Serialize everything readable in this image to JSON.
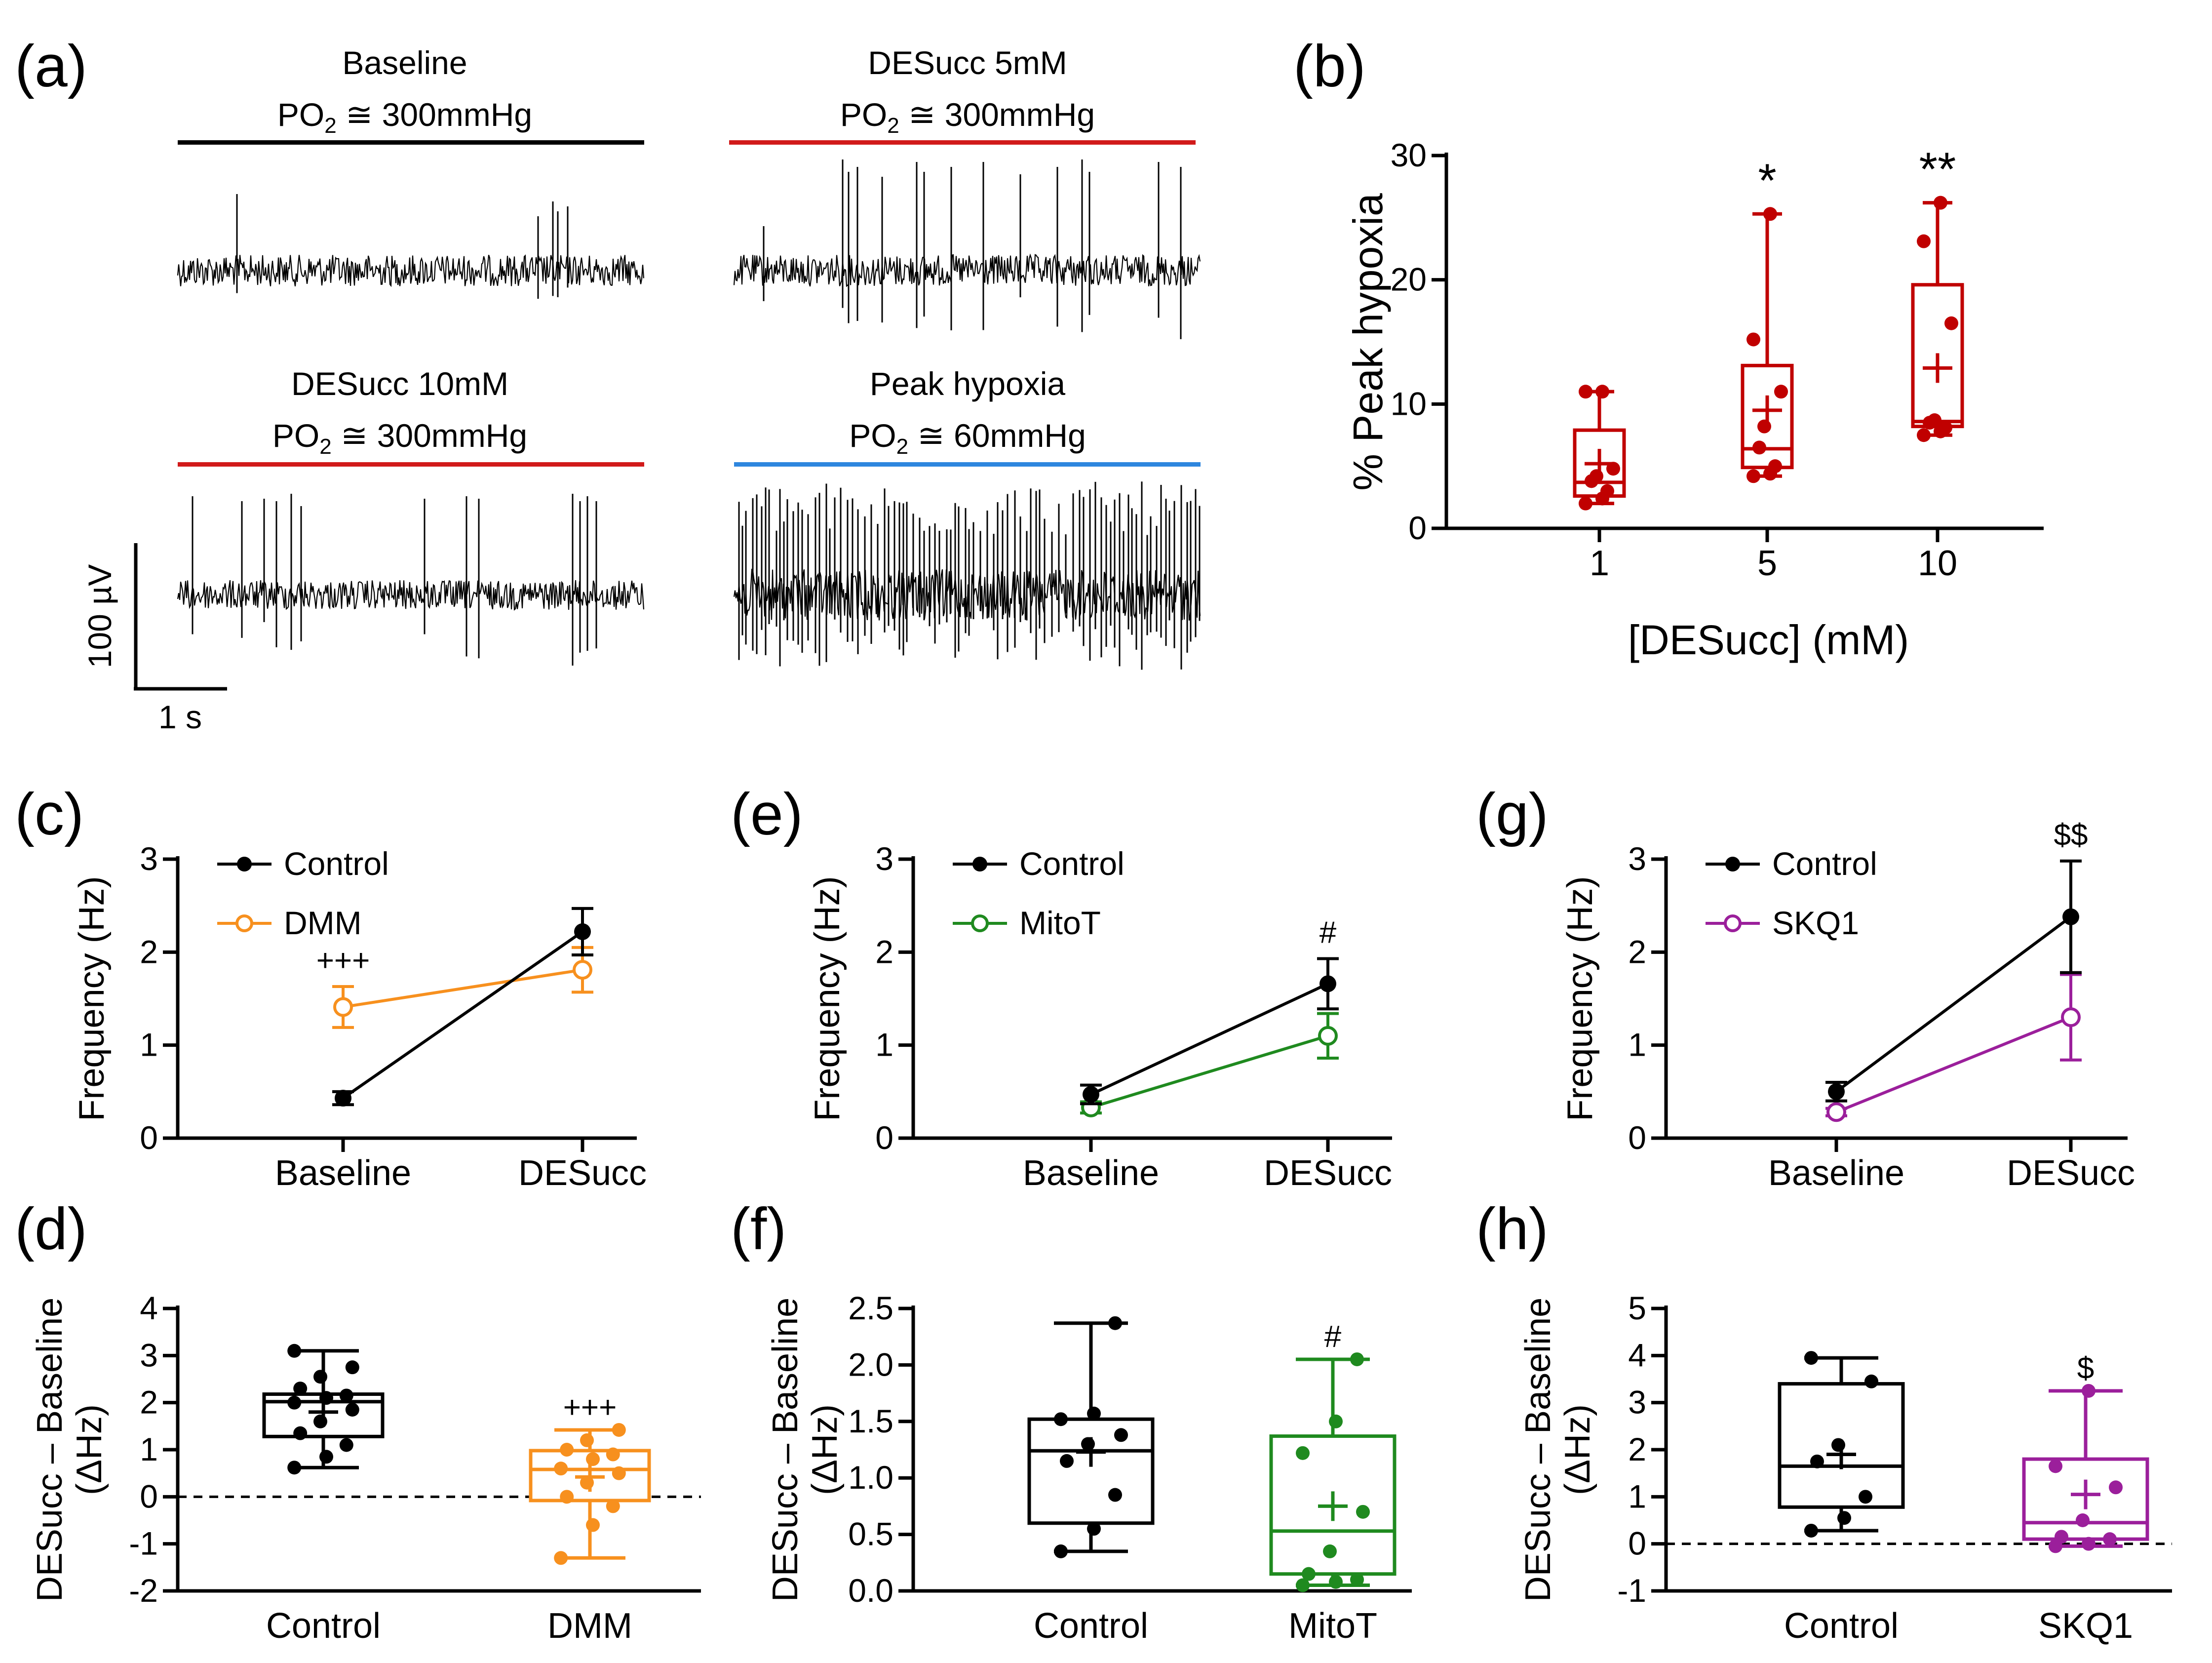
{
  "panel_labels": [
    "(a)",
    "(b)",
    "(c)",
    "(d)",
    "(e)",
    "(f)",
    "(g)",
    "(h)"
  ],
  "colors": {
    "black": "#000000",
    "desucc_red": "#d11a1a",
    "box_red": "#c00000",
    "hypoxia_blue": "#2e86de",
    "dmm_orange": "#f7901e",
    "mitot_green": "#1f8a1f",
    "skq1_purple": "#9b1f9b"
  },
  "panel_a": {
    "traces": [
      {
        "title": "Baseline",
        "subtitle_pre": "PO",
        "subtitle_sub": "2",
        "subtitle_post": " ≅ 300mmHg",
        "bar_color": "#000000",
        "activity": "low"
      },
      {
        "title": "DESucc 5mM",
        "subtitle_pre": "PO",
        "subtitle_sub": "2",
        "subtitle_post": " ≅ 300mmHg",
        "bar_color": "#d11a1a",
        "activity": "moderate"
      },
      {
        "title": "DESucc 10mM",
        "subtitle_pre": "PO",
        "subtitle_sub": "2",
        "subtitle_post": " ≅ 300mmHg",
        "bar_color": "#d11a1a",
        "activity": "moderate"
      },
      {
        "title": "Peak hypoxia",
        "subtitle_pre": "PO",
        "subtitle_sub": "2",
        "subtitle_post": " ≅ 60mmHg",
        "bar_color": "#2e86de",
        "activity": "high"
      }
    ],
    "scale_bar": {
      "vertical": "100 µV",
      "horizontal": "1 s"
    }
  },
  "chart_data": [
    {
      "id": "b",
      "type": "box",
      "ylabel": "% Peak hypoxia",
      "xlabel": "[DESucc] (mM)",
      "ylim": [
        0,
        30
      ],
      "yticks": [
        0,
        10,
        20,
        30
      ],
      "categories": [
        "1",
        "5",
        "10"
      ],
      "color": "#c00000",
      "boxes": [
        {
          "min": 2,
          "q1": 2.6,
          "median": 3.7,
          "q3": 7.9,
          "max": 11,
          "mean": 5.2,
          "points": [
            2.0,
            2.4,
            3.0,
            3.8,
            4.2,
            4.8,
            11.0,
            11.0
          ]
        },
        {
          "min": 4.2,
          "q1": 4.9,
          "median": 6.4,
          "q3": 13.1,
          "max": 25.3,
          "mean": 9.5,
          "points": [
            4.2,
            4.4,
            5.0,
            6.5,
            8.2,
            11.0,
            15.2,
            25.3
          ]
        },
        {
          "min": 7.5,
          "q1": 8.2,
          "median": 8.6,
          "q3": 19.6,
          "max": 26.2,
          "mean": 12.9,
          "points": [
            7.5,
            7.8,
            8.1,
            8.5,
            8.7,
            16.5,
            23.1,
            26.2
          ]
        }
      ],
      "significance": [
        "",
        "*",
        "**"
      ]
    },
    {
      "id": "c",
      "type": "line",
      "ylabel": "Frequency (Hz)",
      "ylim": [
        0,
        3
      ],
      "yticks": [
        0,
        1,
        2,
        3
      ],
      "categories": [
        "Baseline",
        "DESucc"
      ],
      "series": [
        {
          "name": "Control",
          "values": [
            0.43,
            2.22
          ],
          "errors": [
            0.07,
            0.25
          ],
          "color": "#000000",
          "marker": "filled"
        },
        {
          "name": "DMM",
          "values": [
            1.41,
            1.81
          ],
          "errors": [
            0.22,
            0.24
          ],
          "color": "#f7901e",
          "marker": "open"
        }
      ],
      "significance": [
        "+++",
        ""
      ]
    },
    {
      "id": "e",
      "type": "line",
      "ylabel": "Frequency (Hz)",
      "ylim": [
        0,
        3
      ],
      "yticks": [
        0,
        1,
        2,
        3
      ],
      "categories": [
        "Baseline",
        "DESucc"
      ],
      "series": [
        {
          "name": "Control",
          "values": [
            0.47,
            1.66
          ],
          "errors": [
            0.1,
            0.27
          ],
          "color": "#000000",
          "marker": "filled"
        },
        {
          "name": "MitoT",
          "values": [
            0.33,
            1.1
          ],
          "errors": [
            0.06,
            0.24
          ],
          "color": "#1f8a1f",
          "marker": "open"
        }
      ],
      "significance": [
        "",
        "#"
      ]
    },
    {
      "id": "g",
      "type": "line",
      "ylabel": "Frequency (Hz)",
      "ylim": [
        0,
        3
      ],
      "yticks": [
        0,
        1,
        2,
        3
      ],
      "categories": [
        "Baseline",
        "DESucc"
      ],
      "series": [
        {
          "name": "Control",
          "values": [
            0.5,
            2.38
          ],
          "errors": [
            0.1,
            0.6
          ],
          "color": "#000000",
          "marker": "filled"
        },
        {
          "name": "SKQ1",
          "values": [
            0.28,
            1.3
          ],
          "errors": [
            0.04,
            0.46
          ],
          "color": "#9b1f9b",
          "marker": "open"
        }
      ],
      "significance": [
        "",
        "$$"
      ]
    },
    {
      "id": "d",
      "type": "box",
      "ylabel_line1": "DESucc – Baseline",
      "ylabel_line2": "(ΔHz)",
      "ylim": [
        -2,
        4
      ],
      "yticks": [
        -2,
        -1,
        0,
        1,
        2,
        3,
        4
      ],
      "dashed_zero": true,
      "categories": [
        "Control",
        "DMM"
      ],
      "boxes": [
        {
          "min": 0.62,
          "q1": 1.28,
          "median": 2.02,
          "q3": 2.18,
          "max": 3.1,
          "mean": 1.8,
          "color": "#000000",
          "points": [
            0.62,
            0.85,
            1.1,
            1.35,
            1.6,
            1.85,
            2.0,
            2.1,
            2.15,
            2.3,
            2.55,
            2.75,
            3.1
          ]
        },
        {
          "min": -1.3,
          "q1": -0.08,
          "median": 0.58,
          "q3": 0.98,
          "max": 1.42,
          "mean": 0.42,
          "color": "#f7901e",
          "points": [
            -1.3,
            -0.6,
            -0.2,
            0.0,
            0.3,
            0.5,
            0.6,
            0.8,
            0.9,
            1.0,
            1.2,
            1.42
          ]
        }
      ],
      "significance": [
        "",
        "+++"
      ]
    },
    {
      "id": "f",
      "type": "box",
      "ylabel_line1": "DESucc – Baseline",
      "ylabel_line2": "(ΔHz)",
      "ylim": [
        0,
        2.5
      ],
      "yticks": [
        "0.0",
        "0.5",
        "1.0",
        "1.5",
        "2.0",
        "2.5"
      ],
      "dashed_zero": false,
      "categories": [
        "Control",
        "MitoT"
      ],
      "boxes": [
        {
          "min": 0.35,
          "q1": 0.6,
          "median": 1.24,
          "q3": 1.52,
          "max": 2.37,
          "mean": 1.23,
          "color": "#000000",
          "points": [
            0.35,
            0.55,
            0.85,
            1.15,
            1.3,
            1.38,
            1.52,
            1.57,
            2.37
          ]
        },
        {
          "min": 0.05,
          "q1": 0.15,
          "median": 0.53,
          "q3": 1.37,
          "max": 2.05,
          "mean": 0.75,
          "color": "#1f8a1f",
          "points": [
            0.05,
            0.08,
            0.1,
            0.15,
            0.35,
            0.7,
            1.22,
            1.5,
            2.05
          ]
        }
      ],
      "significance": [
        "",
        "#"
      ]
    },
    {
      "id": "h",
      "type": "box",
      "ylabel_line1": "DESucc – Baseline",
      "ylabel_line2": "(ΔHz)",
      "ylim": [
        -1,
        5
      ],
      "yticks": [
        -1,
        0,
        1,
        2,
        3,
        4,
        5
      ],
      "dashed_zero": true,
      "categories": [
        "Control",
        "SKQ1"
      ],
      "boxes": [
        {
          "min": 0.28,
          "q1": 0.78,
          "median": 1.65,
          "q3": 3.4,
          "max": 3.95,
          "mean": 1.9,
          "color": "#000000",
          "points": [
            0.28,
            0.55,
            1.0,
            1.75,
            2.1,
            3.45,
            3.95
          ]
        },
        {
          "min": -0.05,
          "q1": 0.1,
          "median": 0.45,
          "q3": 1.8,
          "max": 3.25,
          "mean": 1.05,
          "color": "#9b1f9b",
          "points": [
            -0.05,
            0.0,
            0.1,
            0.15,
            0.5,
            1.2,
            1.65,
            3.25
          ]
        }
      ],
      "significance": [
        "",
        "$"
      ]
    }
  ]
}
